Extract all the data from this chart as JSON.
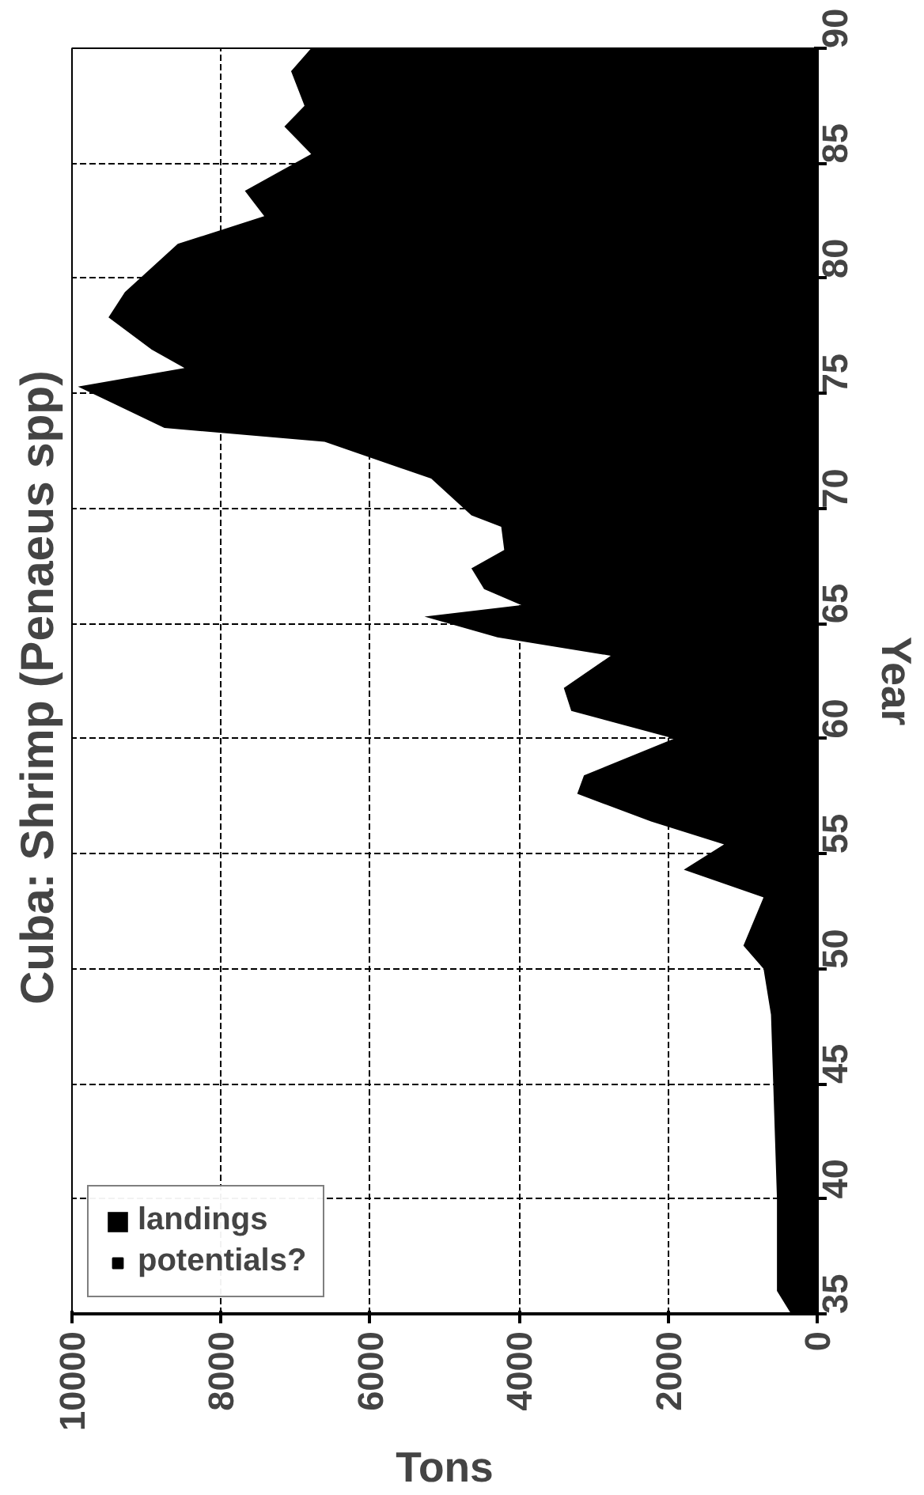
{
  "chart_data": {
    "type": "area",
    "title": "Cuba:  Shrimp (Penaeus spp)",
    "xlabel": "Tons",
    "ylabel": "Year",
    "series": [
      {
        "name": "landings",
        "color": "#000000",
        "x": [
          35,
          36,
          40,
          45,
          48,
          50,
          51,
          53.1,
          54.3,
          55.4,
          56.4,
          57.6,
          58.4,
          60.0,
          61.2,
          62.2,
          63.6,
          64.4,
          65.3,
          65.8,
          66.5,
          67.4,
          68.2,
          69.2,
          69.7,
          71.3,
          72.9,
          73.5,
          75.3,
          76.1,
          76.9,
          78.3,
          79.4,
          81.5,
          82.7,
          83.8,
          85.4,
          86.6,
          87.5,
          89.0,
          90
        ],
        "values": [
          350,
          540,
          540,
          590,
          620,
          720,
          990,
          720,
          1790,
          1250,
          2230,
          3220,
          3130,
          1920,
          3300,
          3400,
          2770,
          4290,
          5270,
          3970,
          4470,
          4640,
          4200,
          4240,
          4640,
          5180,
          6610,
          8760,
          9920,
          8490,
          8930,
          9510,
          9290,
          8580,
          7420,
          7680,
          6790,
          7150,
          6880,
          7060,
          6790
        ]
      },
      {
        "name": "potentials?",
        "color": "#000000"
      }
    ],
    "orientation": "horizontal",
    "ylim": [
      35,
      90
    ],
    "yticks": [
      35,
      40,
      45,
      50,
      55,
      60,
      65,
      70,
      75,
      80,
      85,
      90
    ],
    "xlim": [
      10000,
      0
    ],
    "xticks": [
      0,
      2000,
      4000,
      6000,
      8000,
      10000
    ],
    "grid": true,
    "legend": "bottom left"
  }
}
